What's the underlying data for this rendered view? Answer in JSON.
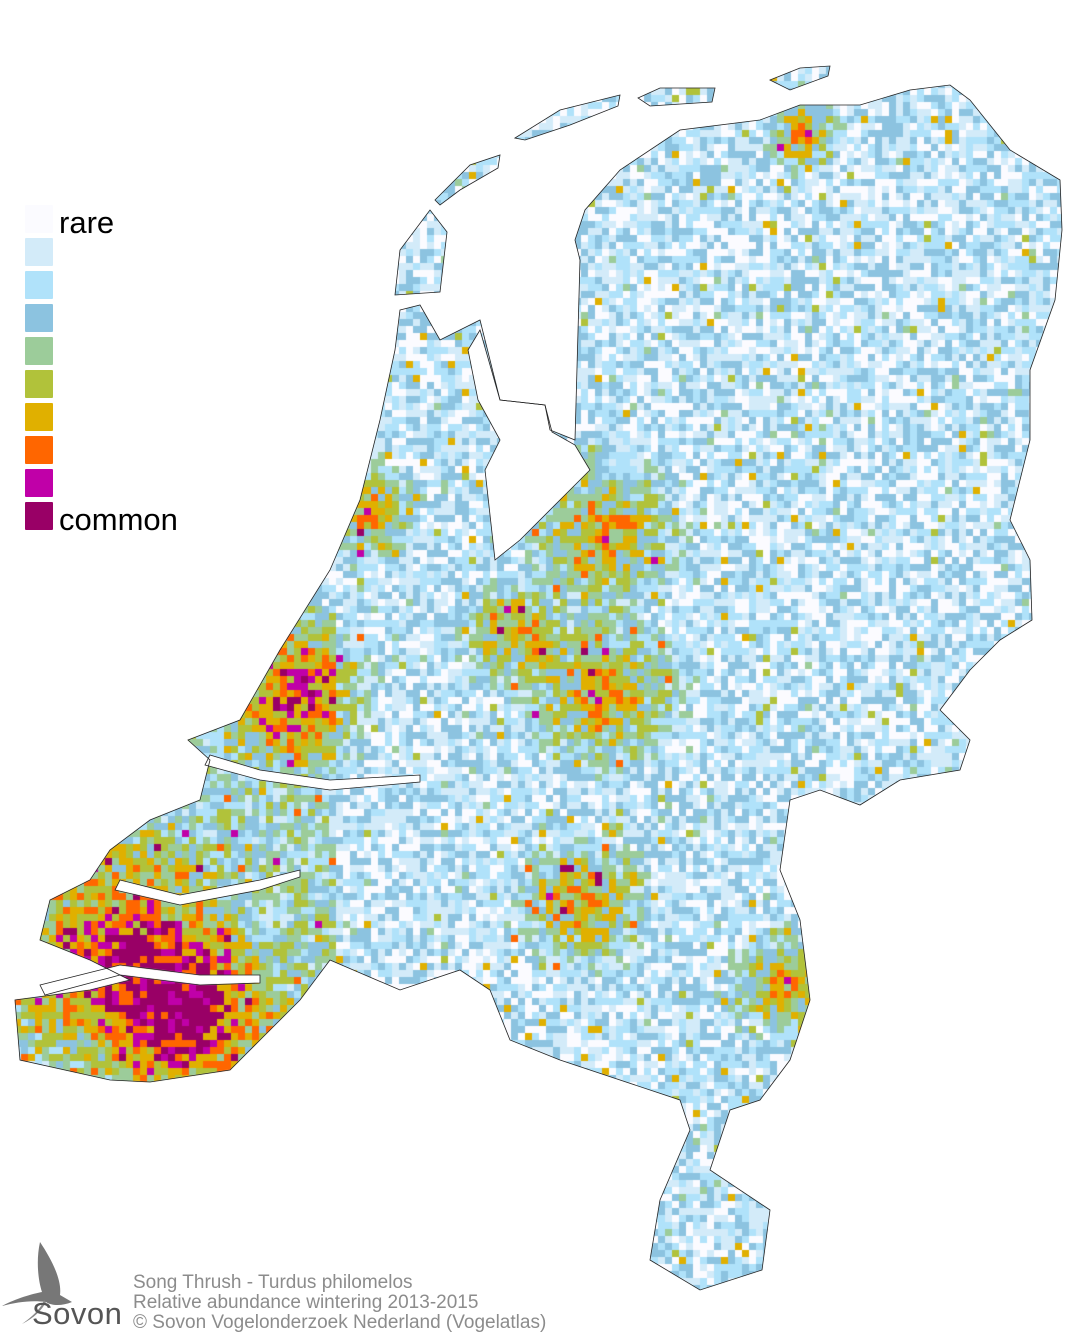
{
  "legend": {
    "top_label": "rare",
    "bottom_label": "common",
    "colors": [
      "#fbfbff",
      "#d3ebf9",
      "#b0e2fa",
      "#8cc3e0",
      "#9ccc9a",
      "#b1c23a",
      "#e0b000",
      "#ff6600",
      "#c000a8",
      "#990066"
    ]
  },
  "caption": {
    "line1": "Song Thrush - Turdus philomelos",
    "line2": "Relative abundance wintering 2013-2015",
    "line3": "© Sovon Vogelonderzoek Nederland (Vogelatlas)"
  },
  "logo": {
    "text": "Sovon",
    "icon": "swallow-icon"
  }
}
